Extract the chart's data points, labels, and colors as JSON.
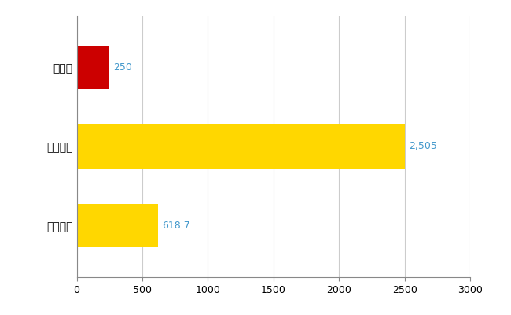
{
  "categories": [
    "奈良県",
    "全国最大",
    "全国平均"
  ],
  "values": [
    250,
    2505,
    618.7
  ],
  "bar_colors": [
    "#CC0000",
    "#FFD700",
    "#FFD700"
  ],
  "value_labels": [
    "250",
    "2,505",
    "618.7"
  ],
  "xlim": [
    0,
    3000
  ],
  "xticks": [
    0,
    500,
    1000,
    1500,
    2000,
    2500,
    3000
  ],
  "background_color": "#ffffff",
  "grid_color": "#cccccc",
  "label_color": "#4499cc",
  "bar_height": 0.55,
  "figsize": [
    6.5,
    4.0
  ],
  "dpi": 100
}
